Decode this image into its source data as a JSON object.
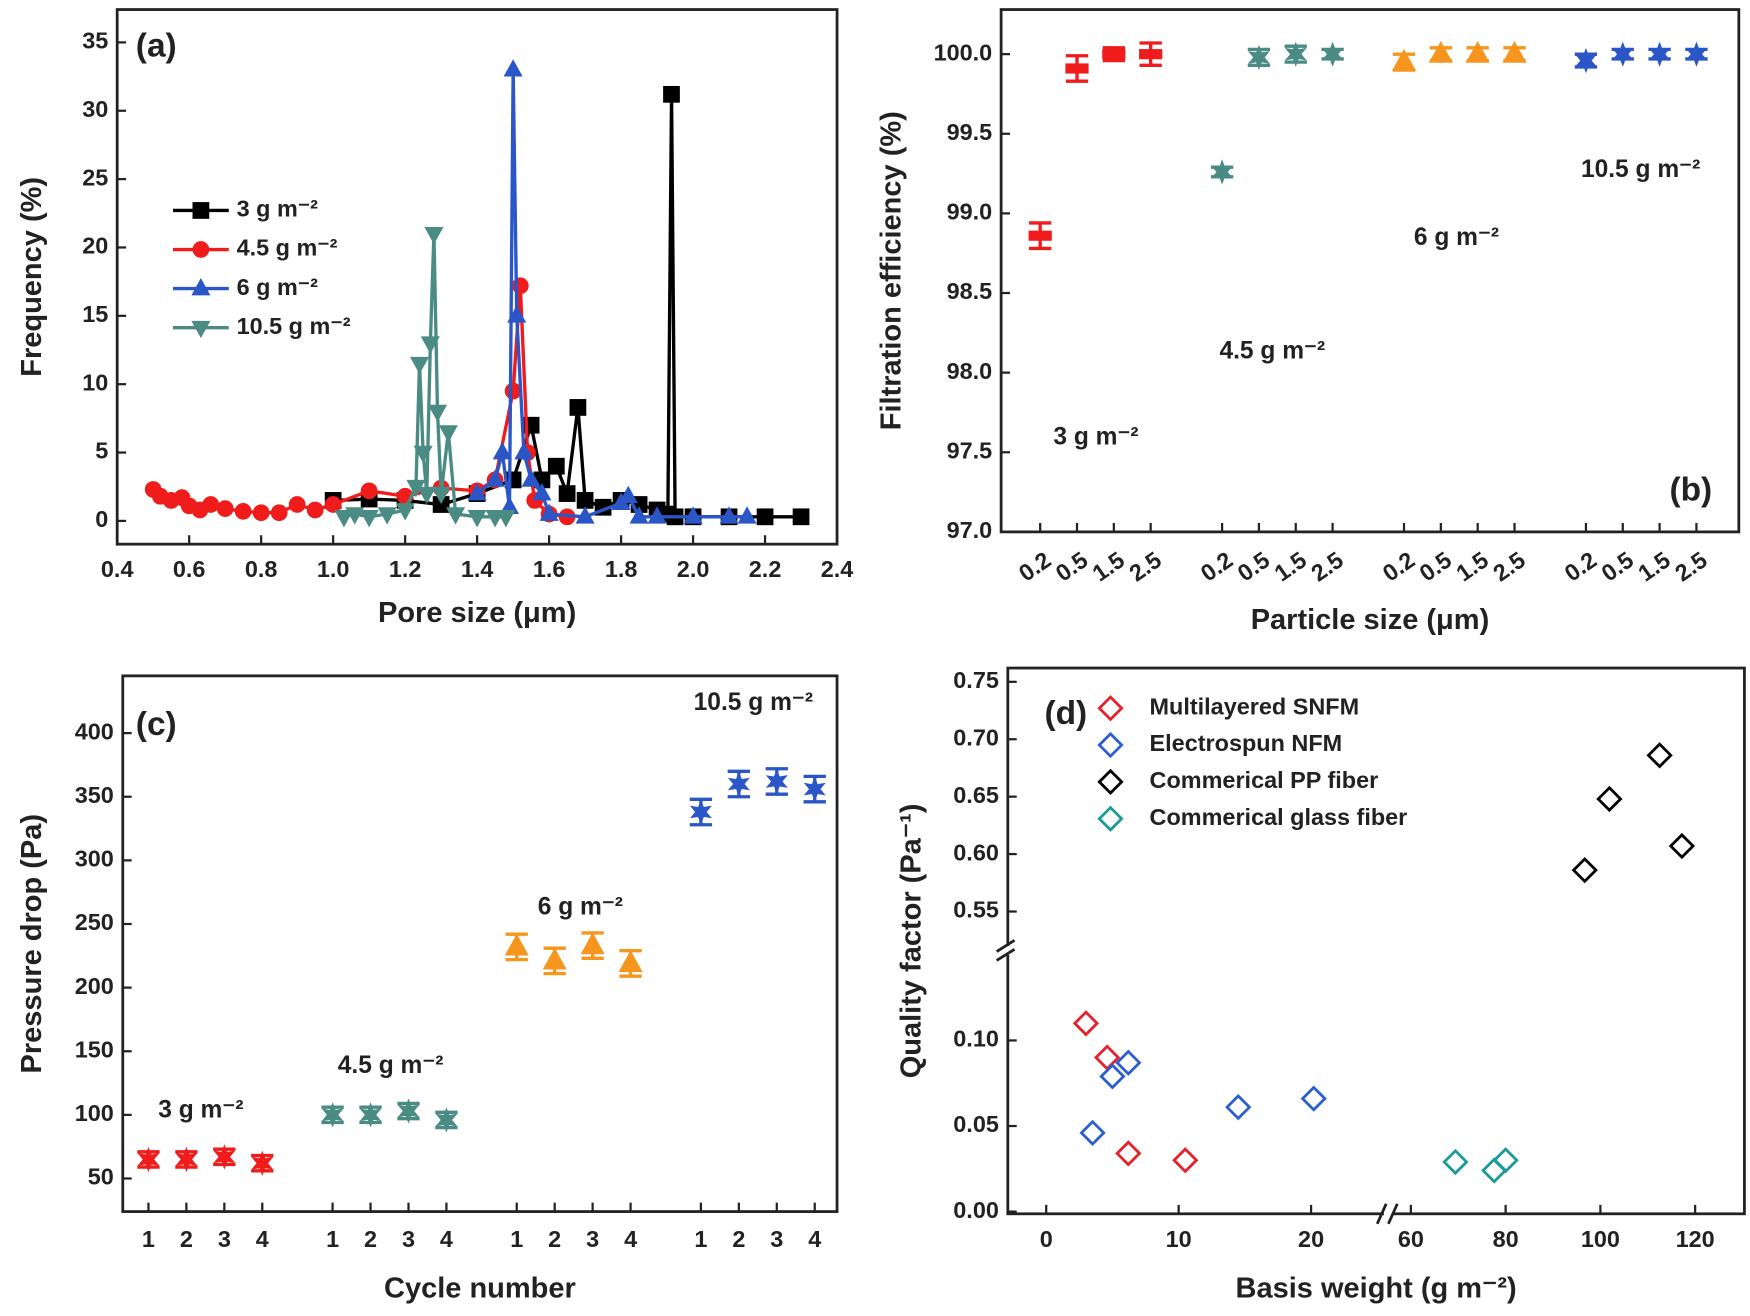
{
  "chart_data": [
    {
      "type": "line",
      "panel_label": "(a)",
      "x_label": "Pore size (μm)",
      "y_label": "Frequency (%)",
      "xlim": [
        0.4,
        2.4
      ],
      "ylim": [
        -1.7,
        37.4
      ],
      "xticks": [
        0.4,
        0.6,
        0.8,
        {
          "value": 1,
          "label": "1.0"
        },
        1.2,
        1.4,
        1.6,
        1.8,
        {
          "value": 2,
          "label": "2.0"
        },
        2.2,
        2.4
      ],
      "yticks": [
        0,
        5,
        10,
        15,
        20,
        25,
        30,
        35
      ],
      "series": [
        {
          "name": "3 g m⁻²",
          "color": "#000000",
          "marker": "square",
          "x": [
            1.0,
            1.1,
            1.2,
            1.3,
            1.4,
            1.5,
            1.55,
            1.58,
            1.62,
            1.65,
            1.68,
            1.7,
            1.75,
            1.8,
            1.85,
            1.9,
            1.93,
            1.94,
            1.95,
            2.0,
            2.1,
            2.2,
            2.3
          ],
          "values": [
            1.5,
            1.6,
            1.5,
            1.2,
            2,
            3,
            7,
            3,
            4,
            2,
            8.3,
            1.5,
            1,
            1.5,
            1.2,
            0.8,
            0.5,
            31.2,
            0.3,
            0.3,
            0.3,
            0.3,
            0.3
          ]
        },
        {
          "name": "4.5 g m⁻²",
          "color": "#f01c1c",
          "marker": "circle",
          "x": [
            0.5,
            0.52,
            0.55,
            0.58,
            0.6,
            0.63,
            0.66,
            0.7,
            0.75,
            0.8,
            0.85,
            0.9,
            0.95,
            1.0,
            1.1,
            1.2,
            1.3,
            1.4,
            1.45,
            1.5,
            1.52,
            1.54,
            1.56,
            1.6,
            1.65
          ],
          "values": [
            2.3,
            1.8,
            1.5,
            1.7,
            1.1,
            0.8,
            1.2,
            0.9,
            0.7,
            0.6,
            0.6,
            1.2,
            0.8,
            1.2,
            2.2,
            1.8,
            2.4,
            2.2,
            3,
            9.5,
            17.2,
            5,
            1.5,
            0.5,
            0.3
          ]
        },
        {
          "name": "6 g m⁻²",
          "color": "#2b56c8",
          "marker": "triangle",
          "x": [
            1.4,
            1.45,
            1.47,
            1.49,
            1.5,
            1.51,
            1.53,
            1.55,
            1.58,
            1.6,
            1.7,
            1.8,
            1.82,
            1.85,
            1.9,
            2.0,
            2.1,
            2.15
          ],
          "values": [
            2,
            3,
            5,
            1,
            33,
            15,
            5,
            3,
            2,
            0.5,
            0.3,
            1.3,
            1.8,
            0.3,
            0.3,
            0.3,
            0.3,
            0.3
          ]
        },
        {
          "name": "10.5 g m⁻²",
          "color": "#4a8c84",
          "marker": "triangle-down",
          "x": [
            1.03,
            1.06,
            1.1,
            1.15,
            1.2,
            1.23,
            1.24,
            1.25,
            1.26,
            1.27,
            1.28,
            1.29,
            1.3,
            1.32,
            1.34,
            1.4,
            1.45,
            1.48
          ],
          "values": [
            0.3,
            0.5,
            0.3,
            0.5,
            0.8,
            2.5,
            11.5,
            5,
            2,
            13,
            21,
            8,
            2,
            6.5,
            0.5,
            0.3,
            0.3,
            0.3
          ]
        }
      ]
    },
    {
      "type": "errorbar",
      "panel_label": "(b)",
      "x_label": "Particle size (μm)",
      "y_label": "Filtration efficiency (%)",
      "ylim": [
        97,
        100.28
      ],
      "yticks": [
        {
          "value": 97,
          "label": "97.0"
        },
        97.5,
        {
          "value": 98,
          "label": "98.0"
        },
        98.5,
        {
          "value": 99,
          "label": "99.0"
        },
        99.5,
        {
          "value": 100,
          "label": "100.0"
        }
      ],
      "categories": [
        "0.2",
        "0.5",
        "1.5",
        "2.5",
        "0.2",
        "0.5",
        "1.5",
        "2.5",
        "0.2",
        "0.5",
        "1.5",
        "2.5",
        "0.2",
        "0.5",
        "1.5",
        "2.5"
      ],
      "annotations": [
        "3 g m⁻²",
        "4.5 g m⁻²",
        "6 g m⁻²",
        "10.5 g m⁻²"
      ],
      "series": [
        {
          "color": "#f01c1c",
          "marker": "bar",
          "values": [
            98.86,
            99.91,
            100.0,
            100.0,
            null,
            null,
            null,
            null,
            null,
            null,
            null,
            null,
            null,
            null,
            null,
            null
          ],
          "errors": [
            0.08,
            0.08,
            0.04,
            0.07,
            null,
            null,
            null,
            null,
            null,
            null,
            null,
            null,
            null,
            null,
            null,
            null
          ]
        },
        {
          "color": "#4a8c84",
          "marker": "star",
          "values": [
            null,
            null,
            null,
            null,
            99.26,
            99.98,
            100.0,
            100.0,
            null,
            null,
            null,
            null,
            null,
            null,
            null,
            null
          ],
          "errors": [
            null,
            null,
            null,
            null,
            0.03,
            0.05,
            0.05,
            0.03,
            null,
            null,
            null,
            null,
            null,
            null,
            null,
            null
          ]
        },
        {
          "color": "#f7961e",
          "marker": "triangle",
          "values": [
            null,
            null,
            null,
            null,
            null,
            null,
            null,
            null,
            99.95,
            100.0,
            100.0,
            100.0,
            null,
            null,
            null,
            null
          ],
          "errors": [
            null,
            null,
            null,
            null,
            null,
            null,
            null,
            null,
            0.05,
            0.04,
            0.04,
            0.04,
            null,
            null,
            null,
            null
          ]
        },
        {
          "color": "#2b56c8",
          "marker": "star",
          "values": [
            null,
            null,
            null,
            null,
            null,
            null,
            null,
            null,
            null,
            null,
            null,
            null,
            99.96,
            100.0,
            100.0,
            100.0
          ],
          "errors": [
            null,
            null,
            null,
            null,
            null,
            null,
            null,
            null,
            null,
            null,
            null,
            null,
            0.04,
            0.03,
            0.03,
            0.03
          ]
        }
      ]
    },
    {
      "type": "errorbar",
      "panel_label": "(c)",
      "x_label": "Cycle number",
      "y_label": "Pressure drop (Pa)",
      "ylim": [
        24,
        445
      ],
      "yticks": [
        50,
        100,
        150,
        200,
        250,
        300,
        350,
        400
      ],
      "categories": [
        "1",
        "2",
        "3",
        "4",
        "1",
        "2",
        "3",
        "4",
        "1",
        "2",
        "3",
        "4",
        "1",
        "2",
        "3",
        "4"
      ],
      "annotations": [
        "3 g m⁻²",
        "4.5 g m⁻²",
        "6 g m⁻²",
        "10.5 g m⁻²"
      ],
      "series": [
        {
          "color": "#f01c1c",
          "marker": "star",
          "values": [
            65,
            65,
            67,
            62,
            null,
            null,
            null,
            null,
            null,
            null,
            null,
            null,
            null,
            null,
            null,
            null
          ],
          "errors": [
            6,
            6,
            6,
            6,
            null,
            null,
            null,
            null,
            null,
            null,
            null,
            null,
            null,
            null,
            null,
            null
          ]
        },
        {
          "color": "#4a8c84",
          "marker": "star",
          "values": [
            null,
            null,
            null,
            null,
            100,
            100,
            103,
            96,
            null,
            null,
            null,
            null,
            null,
            null,
            null,
            null
          ],
          "errors": [
            null,
            null,
            null,
            null,
            6,
            6,
            6,
            6,
            null,
            null,
            null,
            null,
            null,
            null,
            null,
            null
          ]
        },
        {
          "color": "#f7961e",
          "marker": "triangle",
          "values": [
            null,
            null,
            null,
            null,
            null,
            null,
            null,
            null,
            232,
            221,
            233,
            219,
            null,
            null,
            null,
            null
          ],
          "errors": [
            null,
            null,
            null,
            null,
            null,
            null,
            null,
            null,
            10,
            10,
            10,
            10,
            null,
            null,
            null,
            null
          ]
        },
        {
          "color": "#2b56c8",
          "marker": "star",
          "values": [
            null,
            null,
            null,
            null,
            null,
            null,
            null,
            null,
            null,
            null,
            null,
            null,
            338,
            360,
            362,
            356
          ],
          "errors": [
            null,
            null,
            null,
            null,
            null,
            null,
            null,
            null,
            null,
            null,
            null,
            null,
            10,
            10,
            10,
            10
          ]
        }
      ]
    },
    {
      "type": "scatter",
      "panel_label": "(d)",
      "x_label": "Basis weight (g m⁻²)",
      "y_label": "Quality factor (Pa⁻¹)",
      "xsegments": [
        {
          "lim": [
            -2.9,
            25.5
          ],
          "ticks": [
            0,
            10,
            20
          ]
        },
        {
          "lim": [
            56.2,
            130.4
          ],
          "ticks": [
            60,
            80,
            100,
            120
          ]
        }
      ],
      "ysegments": [
        {
          "lim": [
            -0.0013,
            0.15
          ],
          "ticks": [
            {
              "value": 0,
              "label": "0.00"
            },
            0.05,
            {
              "value": 0.1,
              "label": "0.10"
            }
          ]
        },
        {
          "lim": [
            0.52,
            0.762
          ],
          "ticks": [
            0.55,
            {
              "value": 0.6,
              "label": "0.60"
            },
            0.65,
            {
              "value": 0.7,
              "label": "0.70"
            },
            0.75
          ]
        }
      ],
      "series": [
        {
          "name": "Multilayered SNFM",
          "color": "#e8202a",
          "marker": "diamond",
          "x": [
            3,
            4.6,
            6.2,
            10.5
          ],
          "values": [
            0.11,
            0.09,
            0.034,
            0.03
          ]
        },
        {
          "name": "Electrospun NFM",
          "color": "#2b5fd0",
          "marker": "diamond",
          "x": [
            3.5,
            5,
            6.2,
            14.5,
            20.2
          ],
          "values": [
            0.046,
            0.079,
            0.087,
            0.061,
            0.066
          ]
        },
        {
          "name": "Commerical PP fiber",
          "color": "#000000",
          "marker": "diamond",
          "x": [
            96.7,
            101.9,
            112.5,
            117.2
          ],
          "values": [
            0.586,
            0.648,
            0.686,
            0.607
          ]
        },
        {
          "name": "Commerical glass fiber",
          "color": "#1a9b96",
          "marker": "diamond",
          "x": [
            69.4,
            77.6,
            80
          ],
          "values": [
            0.029,
            0.024,
            0.03
          ]
        }
      ]
    }
  ]
}
